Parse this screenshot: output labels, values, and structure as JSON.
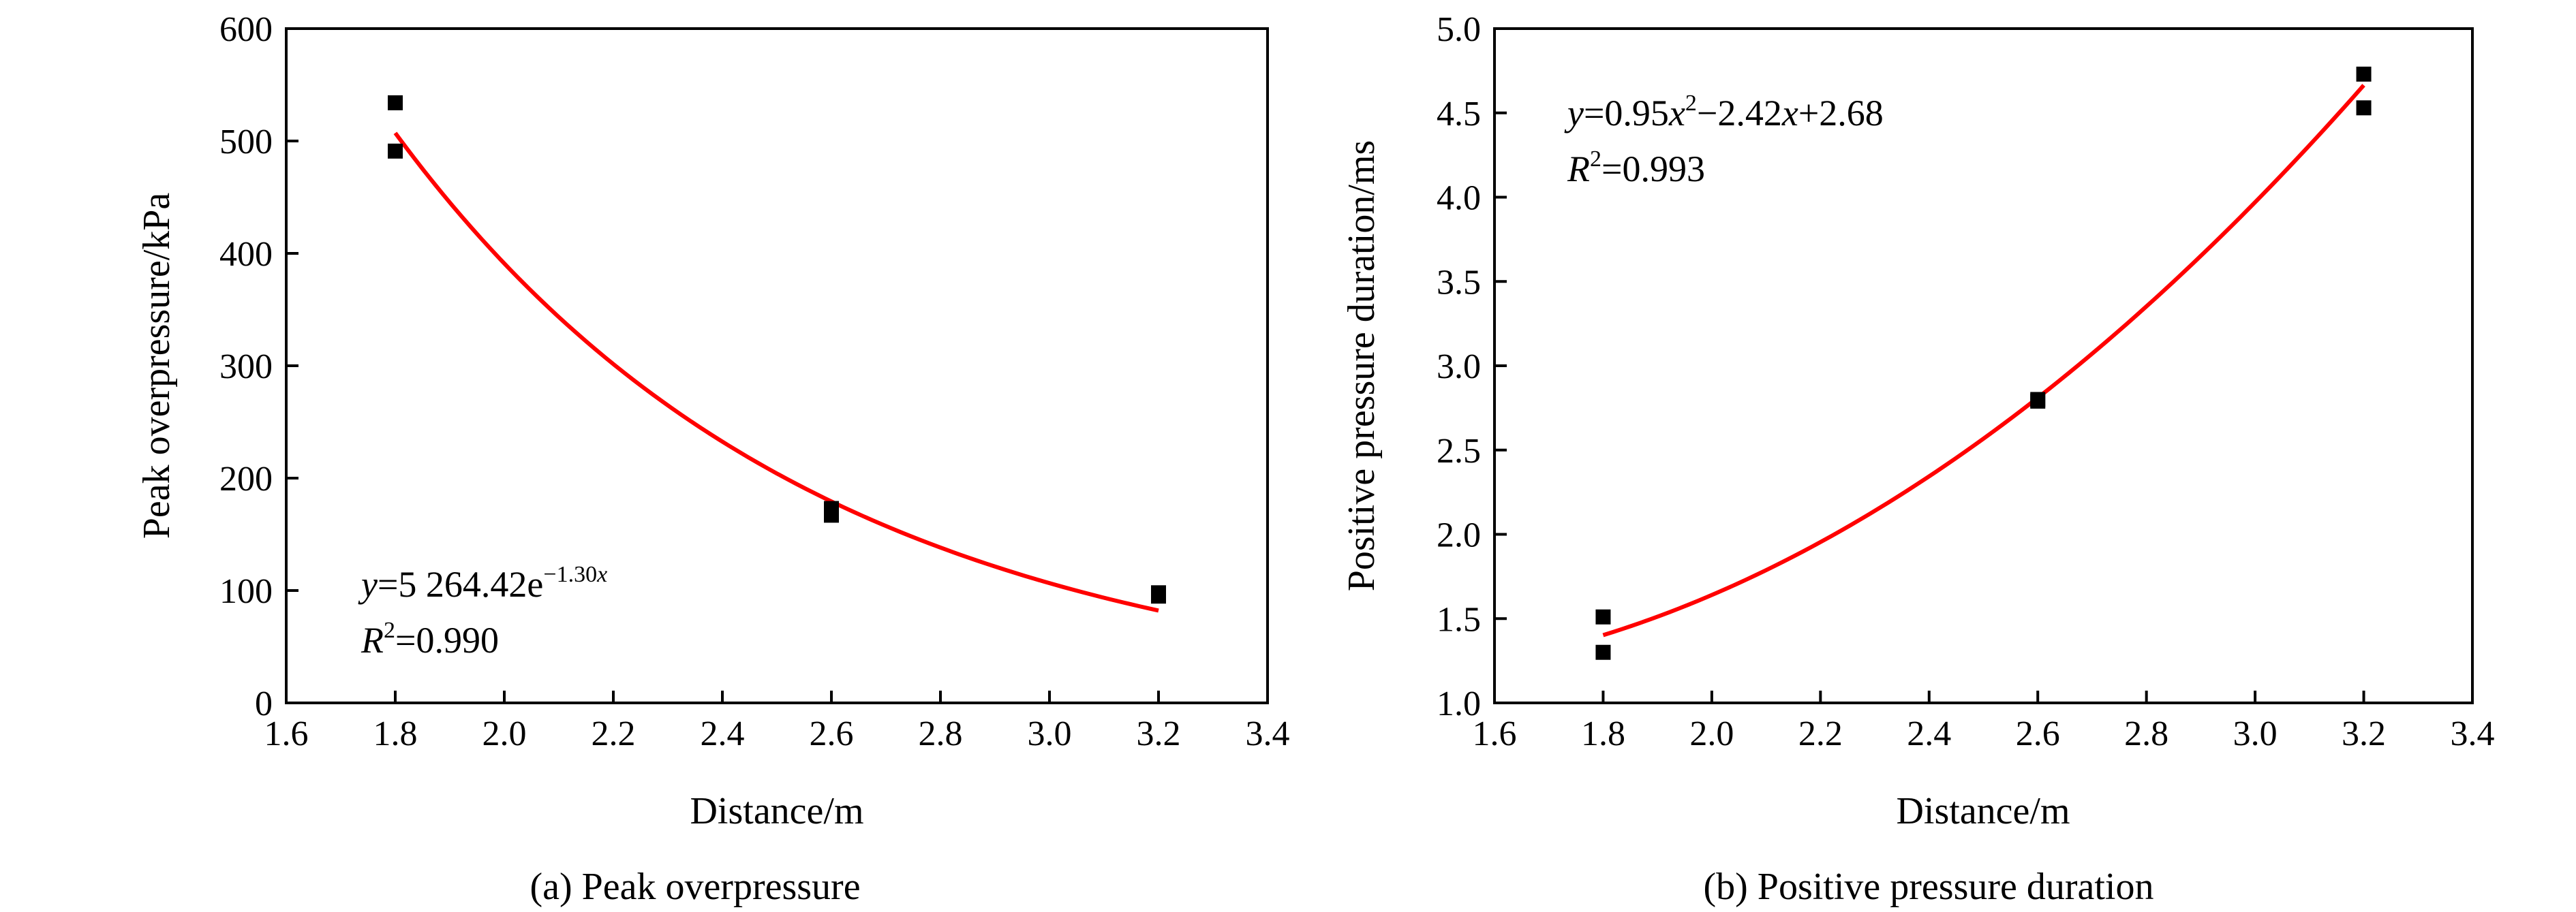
{
  "colors": {
    "fit_line": "#ff0000",
    "points": "#000000",
    "axis": "#000000"
  },
  "chart_data": [
    {
      "type": "scatter",
      "caption": "(a) Peak overpressure",
      "xlabel": "Distance/m",
      "ylabel": "Peak overpressure/kPa",
      "xlim": [
        1.6,
        3.4
      ],
      "ylim": [
        0,
        600
      ],
      "xticks": [
        "1.6",
        "1.8",
        "2.0",
        "2.2",
        "2.4",
        "2.6",
        "2.8",
        "3.0",
        "3.2",
        "3.4"
      ],
      "yticks": [
        "0",
        "100",
        "200",
        "300",
        "400",
        "500",
        "600"
      ],
      "grid": false,
      "points": [
        {
          "x": 1.8,
          "y": 534
        },
        {
          "x": 1.8,
          "y": 491
        },
        {
          "x": 2.6,
          "y": 173
        },
        {
          "x": 2.6,
          "y": 167
        },
        {
          "x": 3.2,
          "y": 98
        },
        {
          "x": 3.2,
          "y": 95
        }
      ],
      "fit": {
        "kind": "exponential",
        "a": 5264.42,
        "b": -1.3,
        "x_range": [
          1.8,
          3.2
        ],
        "equation": {
          "y_var": "y",
          "equals_coeff": "=5 264.42e",
          "exponent": "−1.30",
          "exp_var": "x",
          "r_var": "R",
          "r_sup": "2",
          "r_value": "=0.990"
        }
      }
    },
    {
      "type": "scatter",
      "caption": "(b) Positive pressure duration",
      "xlabel": "Distance/m",
      "ylabel": "Positive pressure duration/ms",
      "xlim": [
        1.6,
        3.4
      ],
      "ylim": [
        1.0,
        5.0
      ],
      "xticks": [
        "1.6",
        "1.8",
        "2.0",
        "2.2",
        "2.4",
        "2.6",
        "2.8",
        "3.0",
        "3.2",
        "3.4"
      ],
      "yticks": [
        "1.0",
        "1.5",
        "2.0",
        "2.5",
        "3.0",
        "3.5",
        "4.0",
        "4.5",
        "5.0"
      ],
      "grid": false,
      "points": [
        {
          "x": 1.8,
          "y": 1.51
        },
        {
          "x": 1.8,
          "y": 1.3
        },
        {
          "x": 2.6,
          "y": 2.8
        },
        {
          "x": 2.6,
          "y": 2.79
        },
        {
          "x": 3.2,
          "y": 4.73
        },
        {
          "x": 3.2,
          "y": 4.53
        }
      ],
      "fit": {
        "kind": "quadratic",
        "a": 0.95,
        "b": -2.42,
        "c": 2.68,
        "x_range": [
          1.8,
          3.2
        ],
        "equation": {
          "y_var": "y",
          "eq1": "=0.95",
          "x1": "x",
          "x1_sup": "2",
          "eq2": "−2.42",
          "x2": "x",
          "eq3": "+2.68",
          "r_var": "R",
          "r_sup": "2",
          "r_value": "=0.993"
        }
      }
    }
  ]
}
